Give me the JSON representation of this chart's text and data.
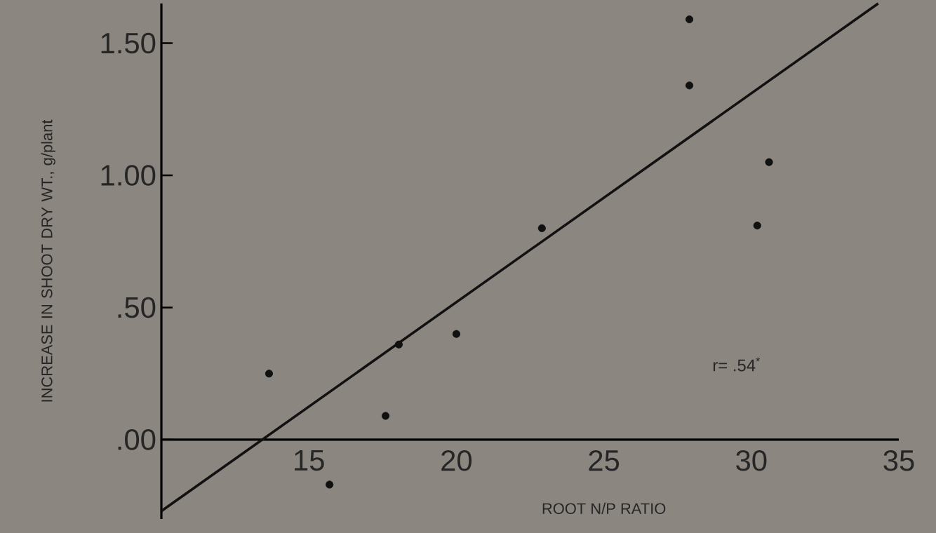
{
  "chart_data": {
    "type": "scatter",
    "xlabel": "ROOT N/P RATIO",
    "ylabel": "INCREASE IN SHOOT DRY WT., g/plant",
    "xlim": [
      10,
      35
    ],
    "ylim": [
      -0.3,
      1.65
    ],
    "xticks": [
      15,
      20,
      25,
      30,
      35
    ],
    "yticks": [
      {
        "value": 0,
        "label": ".00"
      },
      {
        "value": 0.5,
        "label": ".50"
      },
      {
        "value": 1.0,
        "label": "1.00"
      },
      {
        "value": 1.5,
        "label": "1.50"
      }
    ],
    "marker": "circle",
    "series": [
      {
        "color": "#111111",
        "x": [
          13.65,
          15.7,
          17.6,
          18.05,
          20.0,
          22.9,
          27.9,
          27.9,
          30.2,
          30.6
        ],
        "values": [
          0.25,
          -0.17,
          0.09,
          0.36,
          0.4,
          0.8,
          1.59,
          1.34,
          0.81,
          1.05
        ]
      },
      {
        "type": "line",
        "marker": "none",
        "color": "#111111",
        "x": [
          10,
          34.3
        ],
        "values": [
          -0.27,
          1.65
        ]
      }
    ],
    "annotations": [
      "r= .54$^{*}$"
    ]
  }
}
